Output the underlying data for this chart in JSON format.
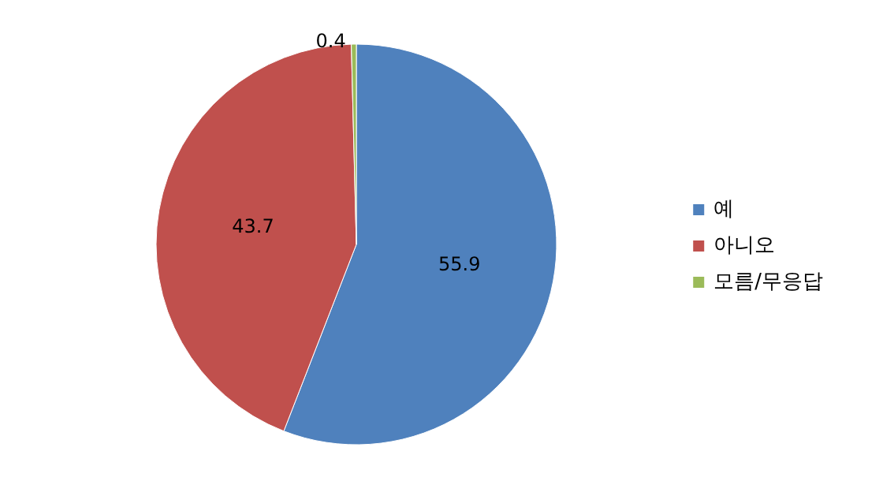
{
  "chart_data": {
    "type": "pie",
    "categories": [
      "예",
      "아니오",
      "모름/무응답"
    ],
    "values": [
      55.9,
      43.7,
      0.4
    ],
    "colors": [
      "#4f81bd",
      "#c0504d",
      "#9bbb59"
    ],
    "data_labels": true,
    "legend": "right"
  }
}
